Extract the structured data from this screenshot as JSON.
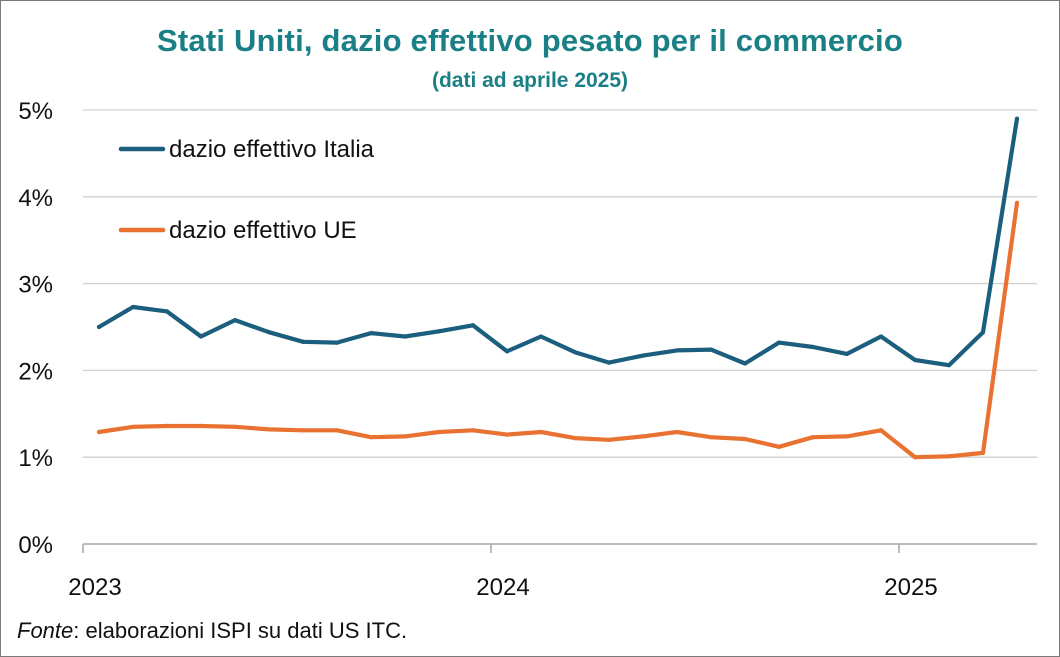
{
  "colors": {
    "title": "#1b7f86",
    "italia": "#1b5e7e",
    "ue": "#e97132",
    "grid": "#d0d0d0",
    "axis": "#a6a6a6",
    "text": "#111111"
  },
  "source": {
    "label": "Fonte",
    "text": ": elaborazioni ISPI su dati US ITC."
  },
  "chart_data": {
    "type": "line",
    "title": "Stati Uniti, dazio effettivo pesato per il commercio",
    "subtitle": "(dati ad aprile 2025)",
    "ylim": [
      0,
      5
    ],
    "y_ticks": [
      0,
      1,
      2,
      3,
      4,
      5
    ],
    "y_tick_labels": [
      "0%",
      "1%",
      "2%",
      "3%",
      "4%",
      "5%"
    ],
    "x_tick_labels": [
      "2023",
      "2024",
      "2025"
    ],
    "x_tick_index": [
      0,
      12,
      24
    ],
    "legend_position": "top-left",
    "x": [
      "2023-01",
      "2023-02",
      "2023-03",
      "2023-04",
      "2023-05",
      "2023-06",
      "2023-07",
      "2023-08",
      "2023-09",
      "2023-10",
      "2023-11",
      "2023-12",
      "2024-01",
      "2024-02",
      "2024-03",
      "2024-04",
      "2024-05",
      "2024-06",
      "2024-07",
      "2024-08",
      "2024-09",
      "2024-10",
      "2024-11",
      "2024-12",
      "2025-01",
      "2025-02",
      "2025-03",
      "2025-04"
    ],
    "series": [
      {
        "name": "dazio effettivo Italia",
        "color_key": "italia",
        "values": [
          2.5,
          2.73,
          2.68,
          2.39,
          2.58,
          2.44,
          2.33,
          2.32,
          2.43,
          2.39,
          2.45,
          2.52,
          2.22,
          2.39,
          2.21,
          2.09,
          2.17,
          2.23,
          2.24,
          2.08,
          2.32,
          2.27,
          2.19,
          2.39,
          2.12,
          2.06,
          2.44,
          4.9
        ]
      },
      {
        "name": "dazio effettivo UE",
        "color_key": "ue",
        "values": [
          1.29,
          1.35,
          1.36,
          1.36,
          1.35,
          1.32,
          1.31,
          1.31,
          1.23,
          1.24,
          1.29,
          1.31,
          1.26,
          1.29,
          1.22,
          1.2,
          1.24,
          1.29,
          1.23,
          1.21,
          1.12,
          1.23,
          1.24,
          1.31,
          1.0,
          1.01,
          1.05,
          3.93
        ]
      }
    ]
  }
}
